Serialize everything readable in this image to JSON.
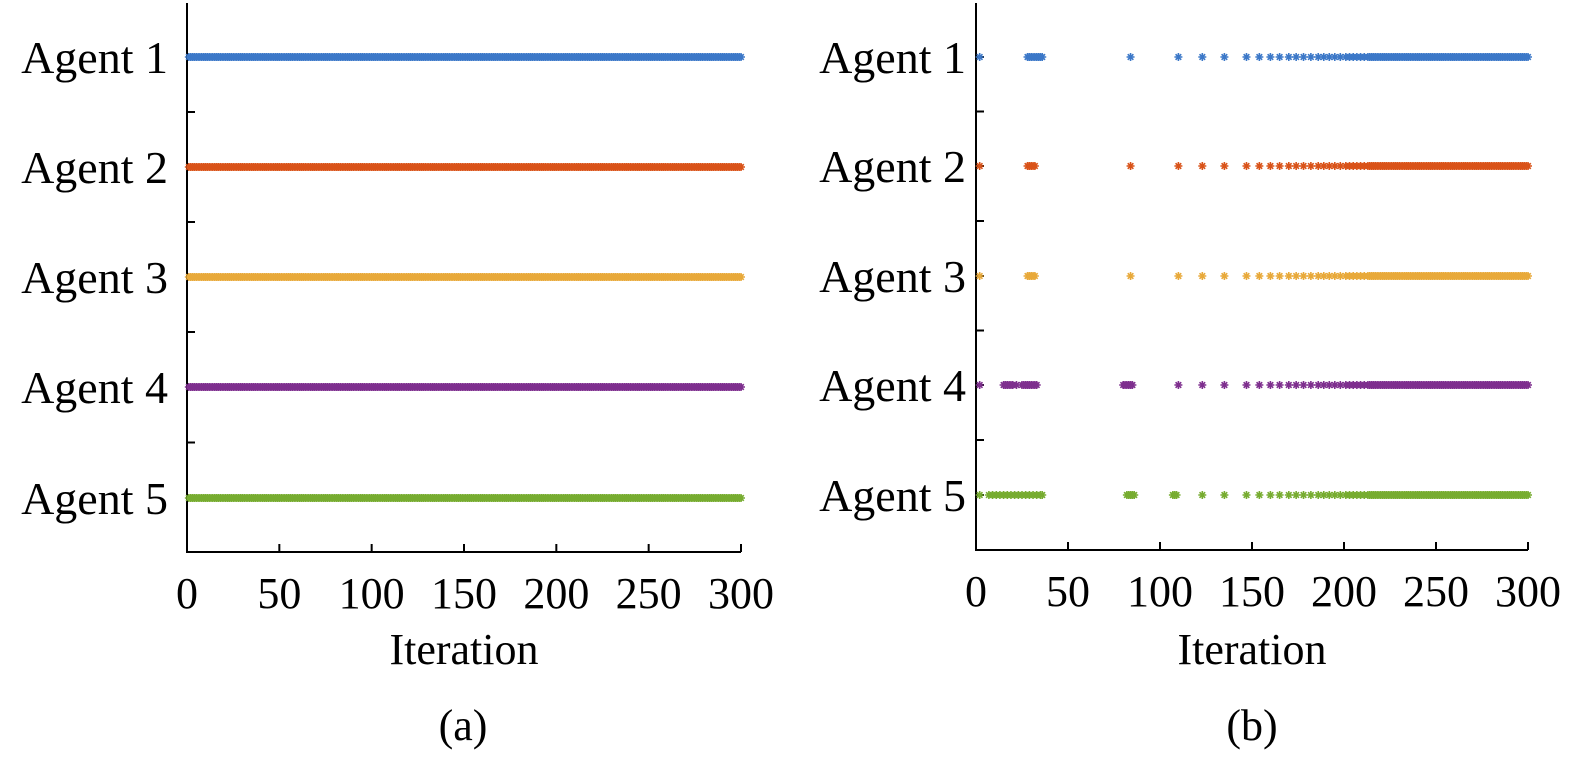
{
  "chart_data": [
    {
      "type": "scatter",
      "panel_label": "(a)",
      "xlabel": "Iteration",
      "ylabel": "",
      "xlim": [
        0,
        300
      ],
      "xticks": [
        "0",
        "50",
        "100",
        "150",
        "200",
        "250",
        "300"
      ],
      "xtick_values": [
        0,
        50,
        100,
        150,
        200,
        250,
        300
      ],
      "categories": [
        "Agent 1",
        "Agent 2",
        "Agent 3",
        "Agent 4",
        "Agent 5"
      ],
      "marker": "asterisk",
      "grid": false,
      "series": [
        {
          "color": "#3c78c8",
          "events": {
            "from": 1,
            "to": 300,
            "step": 1
          }
        },
        {
          "color": "#d95319",
          "events": {
            "from": 1,
            "to": 300,
            "step": 1
          }
        },
        {
          "color": "#e8a93a",
          "events": {
            "from": 1,
            "to": 300,
            "step": 1
          }
        },
        {
          "color": "#7e2f8e",
          "events": {
            "from": 1,
            "to": 300,
            "step": 1
          }
        },
        {
          "color": "#77ac30",
          "events": {
            "from": 1,
            "to": 300,
            "step": 1
          }
        }
      ]
    },
    {
      "type": "scatter",
      "panel_label": "(b)",
      "xlabel": "Iteration",
      "ylabel": "",
      "xlim": [
        0,
        300
      ],
      "xticks": [
        "0",
        "50",
        "100",
        "150",
        "200",
        "250",
        "300"
      ],
      "xtick_values": [
        0,
        50,
        100,
        150,
        200,
        250,
        300
      ],
      "categories": [
        "Agent 1",
        "Agent 2",
        "Agent 3",
        "Agent 4",
        "Agent 5"
      ],
      "marker": "asterisk",
      "grid": false,
      "series": [
        {
          "color": "#3c78c8",
          "values": [
            2,
            28,
            29,
            30,
            31,
            32,
            33,
            34,
            35,
            36,
            84,
            110,
            123,
            135,
            147,
            154,
            160,
            165,
            170,
            174,
            178,
            182,
            186,
            189,
            192,
            195,
            198,
            201,
            203,
            205,
            207,
            209,
            211,
            213
          ],
          "dense_from": 214,
          "dense_to": 300
        },
        {
          "color": "#d95319",
          "values": [
            2,
            28,
            29,
            30,
            31,
            32,
            84,
            110,
            123,
            135,
            147,
            154,
            160,
            165,
            170,
            174,
            178,
            182,
            186,
            189,
            192,
            195,
            198,
            201,
            203,
            205,
            207,
            209,
            211,
            213
          ],
          "dense_from": 214,
          "dense_to": 300
        },
        {
          "color": "#e8a93a",
          "values": [
            2,
            28,
            29,
            30,
            31,
            32,
            84,
            110,
            123,
            135,
            147,
            154,
            160,
            165,
            170,
            174,
            178,
            182,
            186,
            189,
            192,
            195,
            198,
            201,
            203,
            205,
            207,
            209,
            211,
            213
          ],
          "dense_from": 214,
          "dense_to": 300
        },
        {
          "color": "#7e2f8e",
          "values": [
            2,
            15,
            16,
            17,
            18,
            19,
            20,
            22,
            25,
            26,
            27,
            28,
            29,
            30,
            31,
            32,
            33,
            80,
            81,
            82,
            83,
            84,
            85,
            110,
            123,
            135,
            147,
            154,
            160,
            165,
            170,
            174,
            178,
            182,
            186,
            189,
            192,
            195,
            198,
            201,
            203,
            205,
            207,
            209,
            211,
            213
          ],
          "dense_from": 214,
          "dense_to": 300
        },
        {
          "color": "#77ac30",
          "values": [
            2,
            7,
            9,
            11,
            13,
            15,
            17,
            19,
            21,
            23,
            25,
            27,
            29,
            31,
            33,
            35,
            36,
            82,
            83,
            84,
            85,
            86,
            107,
            108,
            109,
            123,
            135,
            147,
            154,
            160,
            165,
            170,
            174,
            178,
            182,
            186,
            189,
            192,
            195,
            198,
            201,
            203,
            205,
            207,
            209,
            211,
            213
          ],
          "dense_from": 214,
          "dense_to": 300
        }
      ]
    }
  ]
}
